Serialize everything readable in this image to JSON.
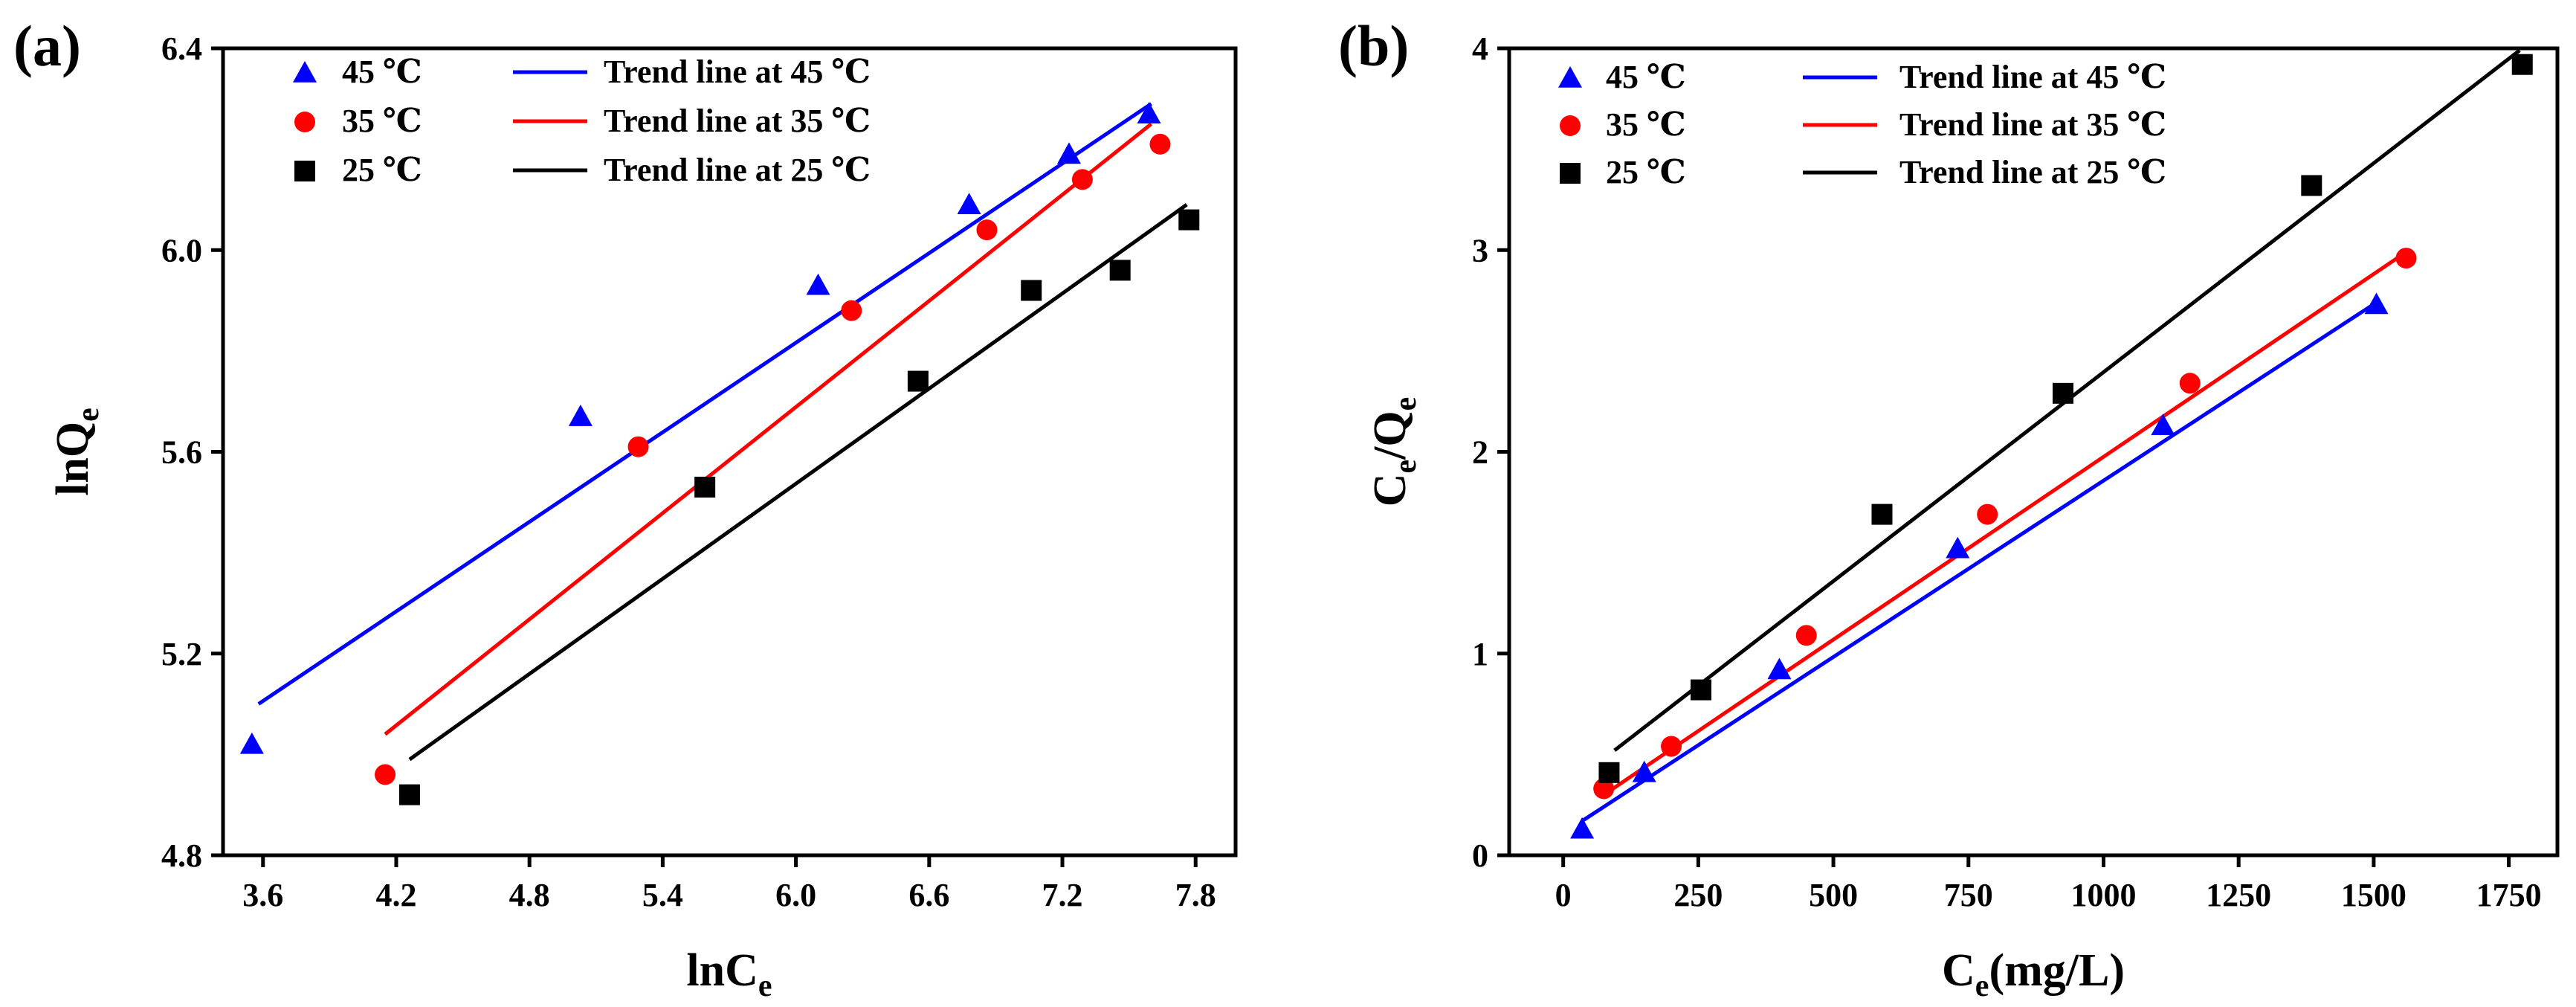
{
  "chart_data": [
    {
      "type": "scatter",
      "panel_label": "(a)",
      "xlabel": {
        "main": "lnC",
        "sub": "e"
      },
      "ylabel": {
        "main": "lnQ",
        "sub": "e"
      },
      "xlim": [
        3.42,
        7.98
      ],
      "ylim": [
        4.8,
        6.4
      ],
      "xticks": [
        3.6,
        4.2,
        4.8,
        5.4,
        6.0,
        6.6,
        7.2,
        7.8
      ],
      "xtick_labels": [
        "3.6",
        "4.2",
        "4.8",
        "5.4",
        "6.0",
        "6.6",
        "7.2",
        "7.8"
      ],
      "yticks": [
        4.8,
        5.2,
        5.6,
        6.0,
        6.4
      ],
      "ytick_labels": [
        "4.8",
        "5.2",
        "5.6",
        "6.0",
        "6.4"
      ],
      "legend_position": "top-left",
      "series": [
        {
          "name": "45 ℃",
          "marker": "triangle",
          "color": "#0000ff",
          "x": [
            3.55,
            5.03,
            6.1,
            6.78,
            7.23,
            7.59
          ],
          "y": [
            5.02,
            5.67,
            5.93,
            6.09,
            6.19,
            6.27
          ]
        },
        {
          "name": "35 ℃",
          "marker": "circle",
          "color": "#ff0000",
          "x": [
            4.15,
            5.29,
            6.25,
            6.86,
            7.29,
            7.64
          ],
          "y": [
            4.96,
            5.61,
            5.88,
            6.04,
            6.14,
            6.21
          ]
        },
        {
          "name": "25 ℃",
          "marker": "square",
          "color": "#000000",
          "x": [
            4.26,
            5.59,
            6.55,
            7.06,
            7.46,
            7.77
          ],
          "y": [
            4.92,
            5.53,
            5.74,
            5.92,
            5.96,
            6.06
          ]
        }
      ],
      "trend_lines": [
        {
          "name": "Trend line at 45 ℃",
          "color": "#0000ff",
          "x": [
            3.58,
            7.6
          ],
          "y": [
            5.1,
            6.29
          ]
        },
        {
          "name": "Trend line at 35 ℃",
          "color": "#ff0000",
          "x": [
            4.15,
            7.6
          ],
          "y": [
            5.04,
            6.25
          ]
        },
        {
          "name": "Trend line at 25 ℃",
          "color": "#000000",
          "x": [
            4.26,
            7.76
          ],
          "y": [
            4.99,
            6.09
          ]
        }
      ]
    },
    {
      "type": "scatter",
      "panel_label": "(b)",
      "xlabel": {
        "main": "C",
        "sub": "e",
        "rest": "(mg/L)"
      },
      "ylabel": {
        "main": "C",
        "sub": "e",
        "rest": "/Q",
        "sub2": "e"
      },
      "xlim": [
        -100,
        1840
      ],
      "ylim": [
        0,
        4
      ],
      "xticks": [
        0,
        250,
        500,
        750,
        1000,
        1250,
        1500,
        1750
      ],
      "xtick_labels": [
        "0",
        "250",
        "500",
        "750",
        "1000",
        "1250",
        "1500",
        "1750"
      ],
      "yticks": [
        0,
        1,
        2,
        3,
        4
      ],
      "ytick_labels": [
        "0",
        "1",
        "2",
        "3",
        "4"
      ],
      "legend_position": "top-left",
      "series": [
        {
          "name": "45 ℃",
          "marker": "triangle",
          "color": "#0000ff",
          "x": [
            35,
            150,
            400,
            730,
            1110,
            1505
          ],
          "y": [
            0.13,
            0.41,
            0.92,
            1.52,
            2.13,
            2.73
          ]
        },
        {
          "name": "35 ℃",
          "marker": "circle",
          "color": "#ff0000",
          "x": [
            75,
            200,
            450,
            785,
            1160,
            1560
          ],
          "y": [
            0.33,
            0.54,
            1.09,
            1.69,
            2.34,
            2.96
          ]
        },
        {
          "name": "25 ℃",
          "marker": "square",
          "color": "#000000",
          "x": [
            85,
            255,
            590,
            925,
            1385,
            1775
          ],
          "y": [
            0.41,
            0.82,
            1.69,
            2.29,
            3.32,
            3.92
          ]
        }
      ],
      "trend_lines": [
        {
          "name": "Trend line at 45 ℃",
          "color": "#0000ff",
          "x": [
            35,
            1505
          ],
          "y": [
            0.17,
            2.74
          ]
        },
        {
          "name": "Trend line at 35 ℃",
          "color": "#ff0000",
          "x": [
            70,
            1560
          ],
          "y": [
            0.29,
            2.99
          ]
        },
        {
          "name": "Trend line at 25 ℃",
          "color": "#000000",
          "x": [
            95,
            1770
          ],
          "y": [
            0.52,
            3.99
          ]
        }
      ]
    }
  ]
}
